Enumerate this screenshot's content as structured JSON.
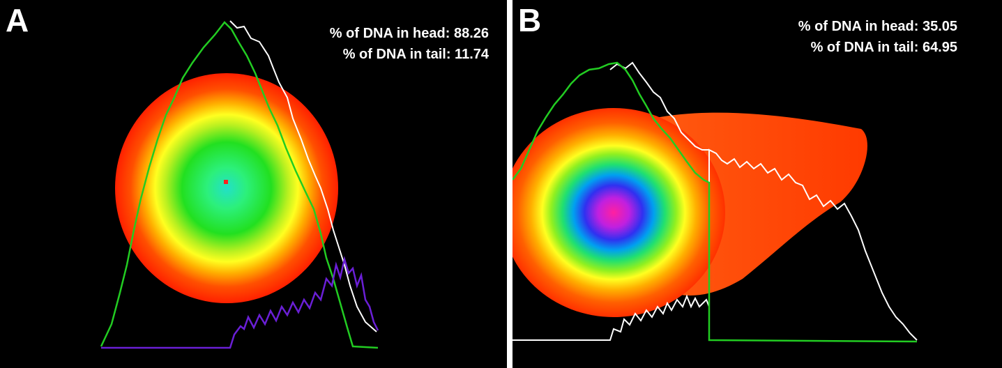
{
  "panels": [
    {
      "letter": "A",
      "head_label": "% of DNA in head: 88.26",
      "tail_label": "% of DNA in tail: 11.74"
    },
    {
      "letter": "B",
      "head_label": "% of DNA in head: 35.05",
      "tail_label": "% of DNA in tail: 64.95"
    }
  ],
  "colors": {
    "background": "#000000",
    "head_profile": "#22cc22",
    "total_profile": "#ffffff",
    "tail_profile": "#6a1fd6",
    "halo_outer": "#ff2a00"
  }
}
